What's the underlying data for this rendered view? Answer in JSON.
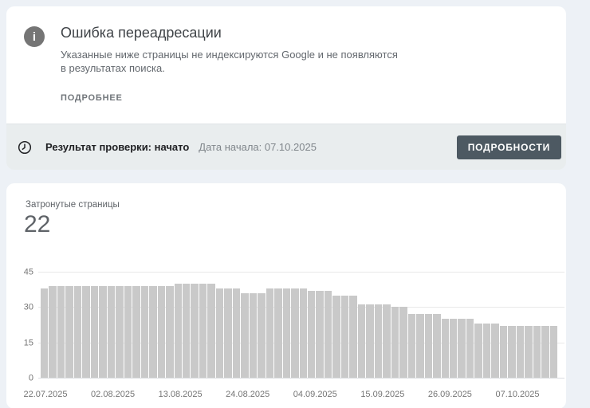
{
  "alert": {
    "title": "Ошибка переадресации",
    "description": "Указанные ниже страницы не индексируются Google и не появляются в результатах поиска.",
    "more_link": "ПОДРОБНЕЕ"
  },
  "validation": {
    "status_label": "Результат проверки: начато",
    "start_date": "Дата начала: 07.10.2025",
    "details_button": "ПОДРОБНОСТИ"
  },
  "affected": {
    "label": "Затронутые страницы",
    "count": "22"
  },
  "icons": {
    "info_icon": "i",
    "clock_icon": "clock-outline"
  },
  "colors": {
    "page_background": "#edf1f6",
    "card_background": "#ffffff",
    "status_bar_background": "#e9edee",
    "button_background": "#4d5962",
    "bar_color": "#c9c9c9",
    "gridline_color": "#e9e9e9",
    "axis_text_color": "#757575"
  },
  "chart_data": {
    "type": "bar",
    "title": "Затронутые страницы",
    "current_value": 22,
    "xlabel": "",
    "ylabel": "",
    "grid": true,
    "legend": false,
    "ylim": [
      0,
      45
    ],
    "y_ticks": [
      0,
      15,
      30,
      45
    ],
    "x_tick_labels": [
      "22.07.2025",
      "02.08.2025",
      "13.08.2025",
      "24.08.2025",
      "04.09.2025",
      "15.09.2025",
      "26.09.2025",
      "07.10.2025"
    ],
    "values": [
      38,
      39,
      39,
      39,
      39,
      39,
      39,
      39,
      39,
      39,
      39,
      39,
      39,
      39,
      39,
      39,
      40,
      40,
      40,
      40,
      40,
      38,
      38,
      38,
      36,
      36,
      36,
      38,
      38,
      38,
      38,
      38,
      37,
      37,
      37,
      35,
      35,
      35,
      31,
      31,
      31,
      31,
      30,
      30,
      27,
      27,
      27,
      27,
      25,
      25,
      25,
      25,
      23,
      23,
      23,
      22,
      22,
      22,
      22,
      22,
      22,
      22
    ]
  }
}
